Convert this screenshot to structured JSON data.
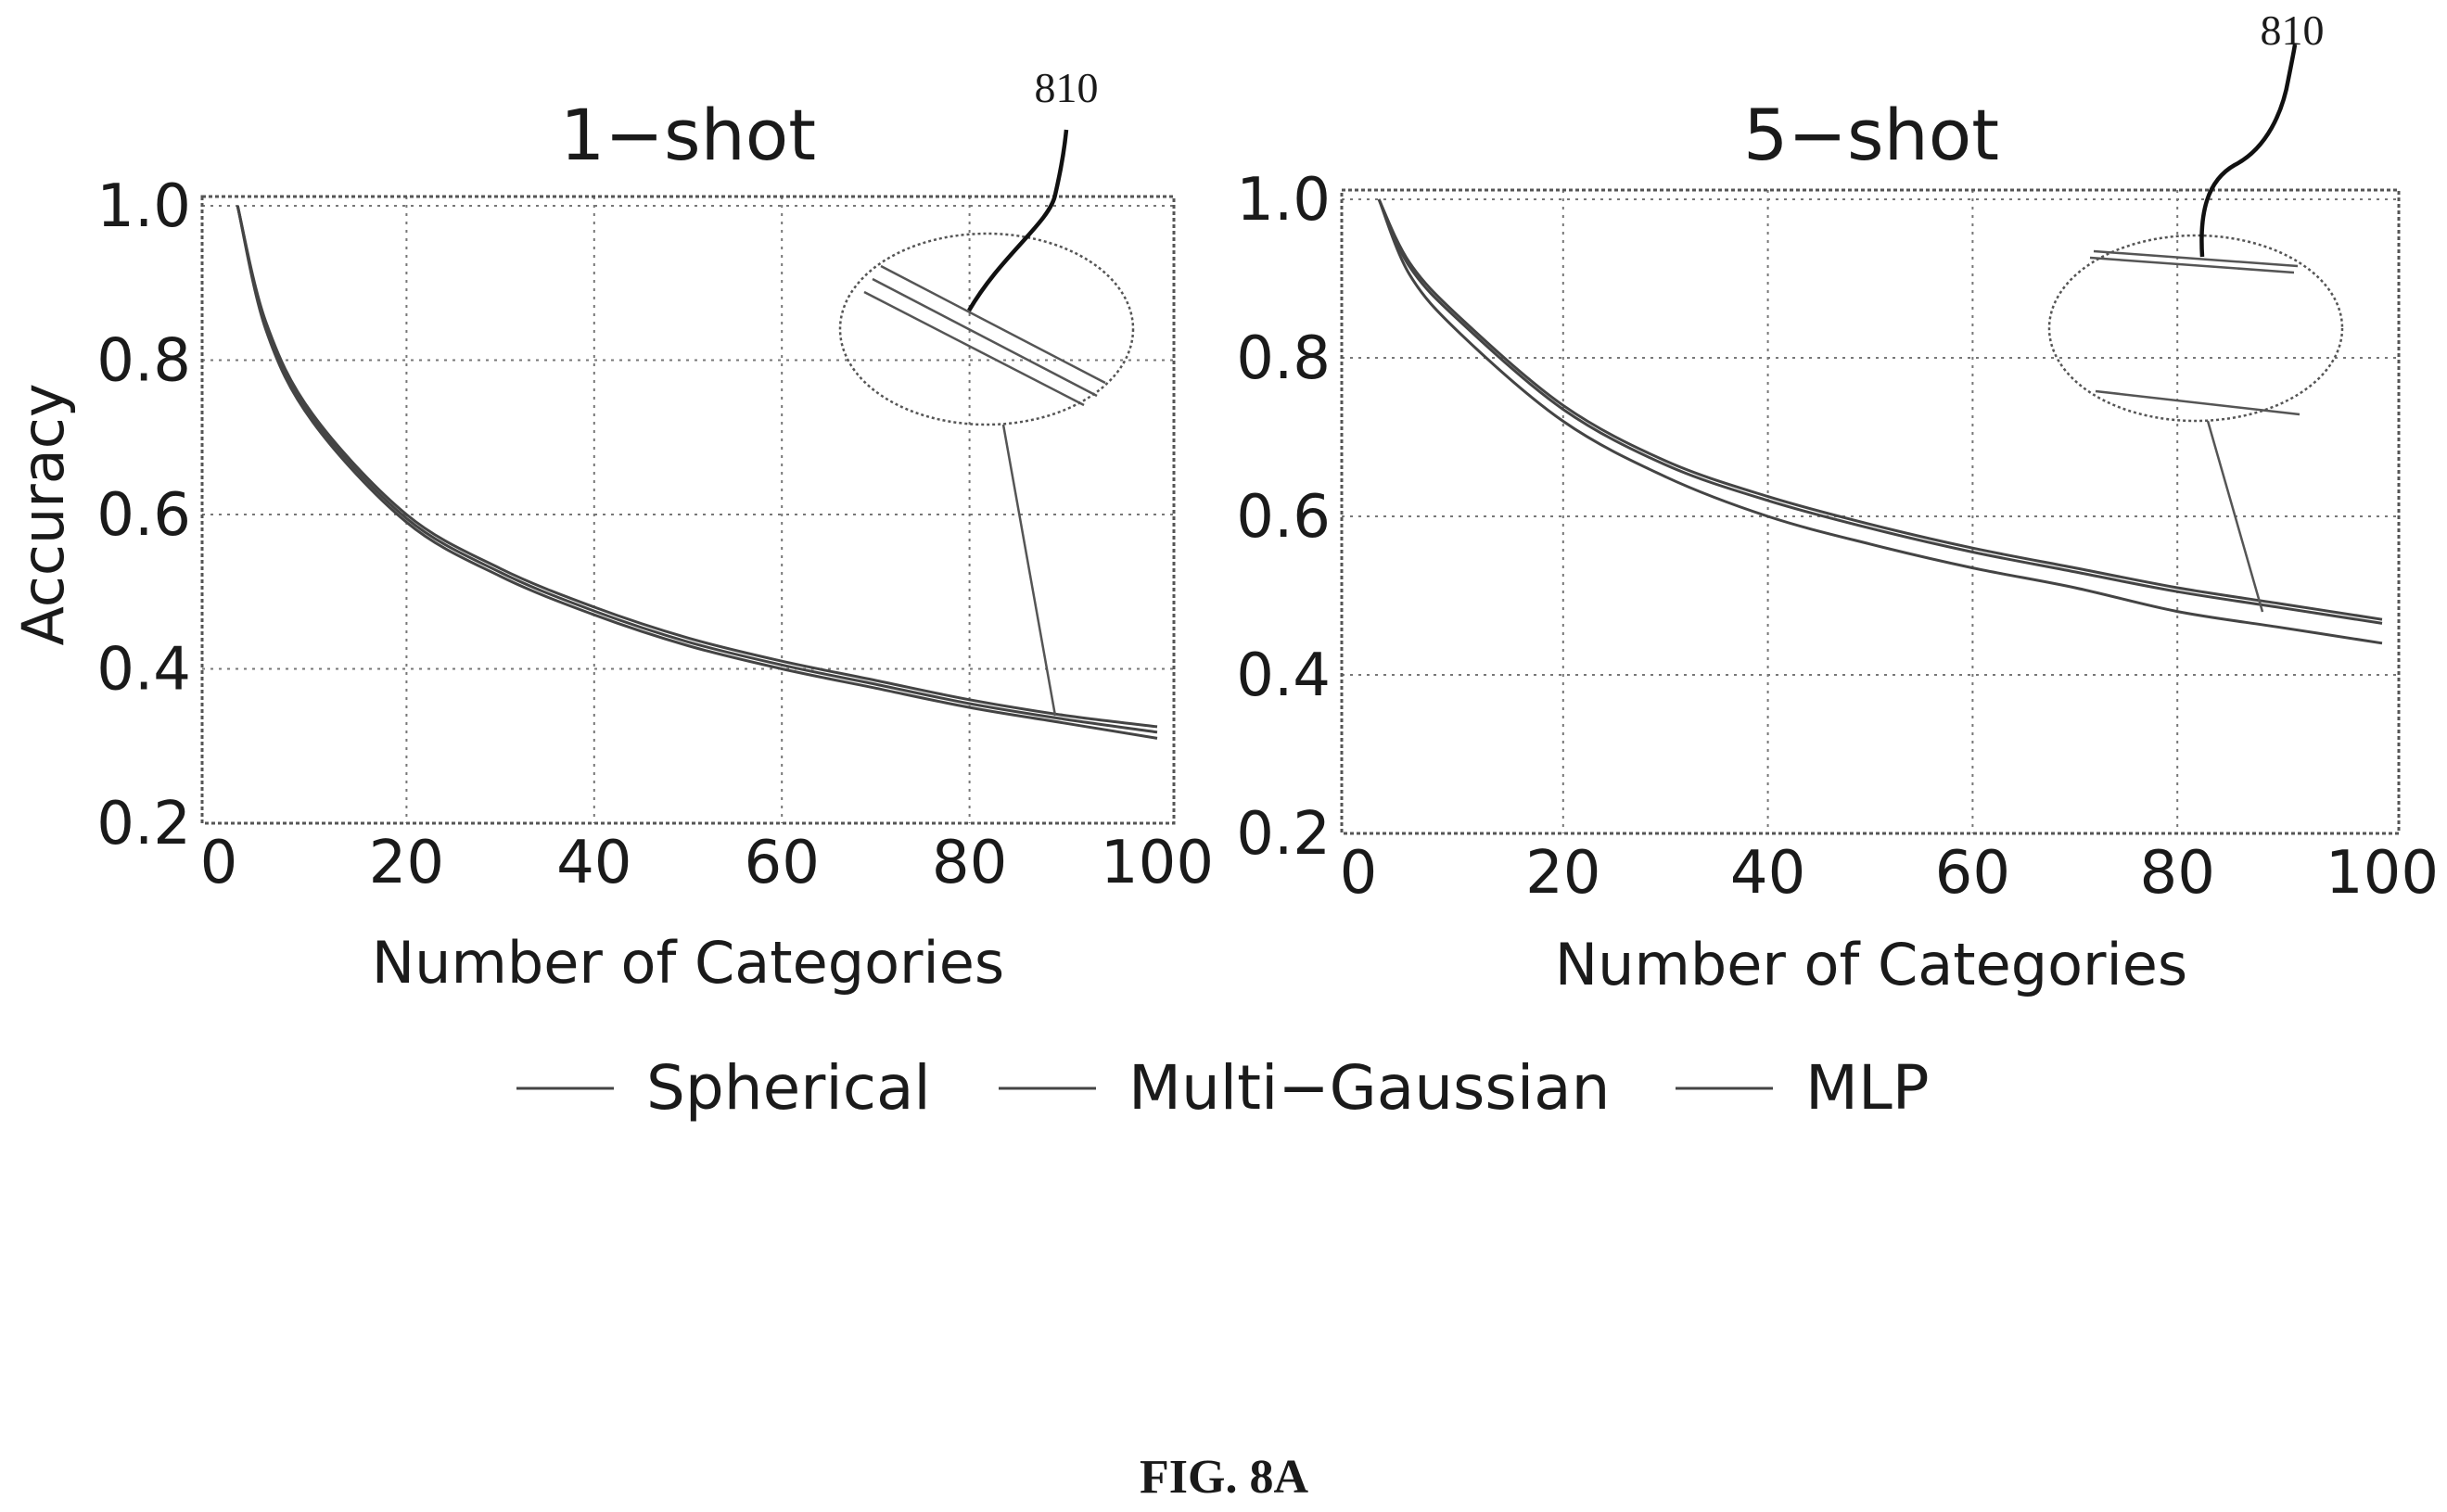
{
  "figure": {
    "caption": "FIG. 8A",
    "reference_numeral": "810"
  },
  "legend": {
    "placement": "bottom-center",
    "entries": [
      "Spherical",
      "Multi−Gaussian",
      "MLP"
    ]
  },
  "colors": {
    "line": "#444444",
    "grid": "#777777",
    "text": "#1a1a1a",
    "background": "#ffffff"
  },
  "chart_data": [
    {
      "type": "line",
      "title": "1−shot",
      "xlabel": "Number of Categories",
      "ylabel": "Accuracy",
      "xlim": [
        0,
        100
      ],
      "ylim": [
        0.2,
        1.0
      ],
      "xticks": [
        "0",
        "20",
        "40",
        "60",
        "80",
        "100"
      ],
      "yticks": [
        "0.2",
        "0.4",
        "0.6",
        "0.8",
        "1.0"
      ],
      "grid": true,
      "x": [
        2,
        5,
        10,
        20,
        30,
        40,
        50,
        60,
        70,
        80,
        90,
        100
      ],
      "series": [
        {
          "name": "Spherical",
          "values": [
            1.0,
            0.85,
            0.73,
            0.6,
            0.53,
            0.48,
            0.44,
            0.41,
            0.385,
            0.36,
            0.34,
            0.325
          ]
        },
        {
          "name": "Multi−Gaussian",
          "values": [
            1.0,
            0.845,
            0.725,
            0.595,
            0.525,
            0.475,
            0.435,
            0.405,
            0.38,
            0.355,
            0.335,
            0.318
          ]
        },
        {
          "name": "MLP",
          "values": [
            1.0,
            0.84,
            0.72,
            0.59,
            0.52,
            0.47,
            0.43,
            0.4,
            0.375,
            0.35,
            0.33,
            0.31
          ]
        }
      ]
    },
    {
      "type": "line",
      "title": "5−shot",
      "xlabel": "Number of Categories",
      "ylabel": "",
      "xlim": [
        0,
        100
      ],
      "ylim": [
        0.2,
        1.0
      ],
      "xticks": [
        "0",
        "20",
        "40",
        "60",
        "80",
        "100"
      ],
      "yticks": [
        "0.2",
        "0.4",
        "0.6",
        "0.8",
        "1.0"
      ],
      "grid": true,
      "x": [
        2,
        5,
        10,
        20,
        30,
        40,
        50,
        60,
        70,
        80,
        90,
        100
      ],
      "series": [
        {
          "name": "Spherical",
          "values": [
            1.0,
            0.92,
            0.85,
            0.74,
            0.67,
            0.625,
            0.59,
            0.56,
            0.535,
            0.51,
            0.49,
            0.47
          ]
        },
        {
          "name": "Multi−Gaussian",
          "values": [
            1.0,
            0.915,
            0.845,
            0.735,
            0.665,
            0.62,
            0.585,
            0.555,
            0.53,
            0.505,
            0.485,
            0.465
          ]
        },
        {
          "name": "MLP",
          "values": [
            1.0,
            0.905,
            0.83,
            0.72,
            0.65,
            0.6,
            0.565,
            0.535,
            0.51,
            0.48,
            0.46,
            0.44
          ]
        }
      ]
    }
  ]
}
